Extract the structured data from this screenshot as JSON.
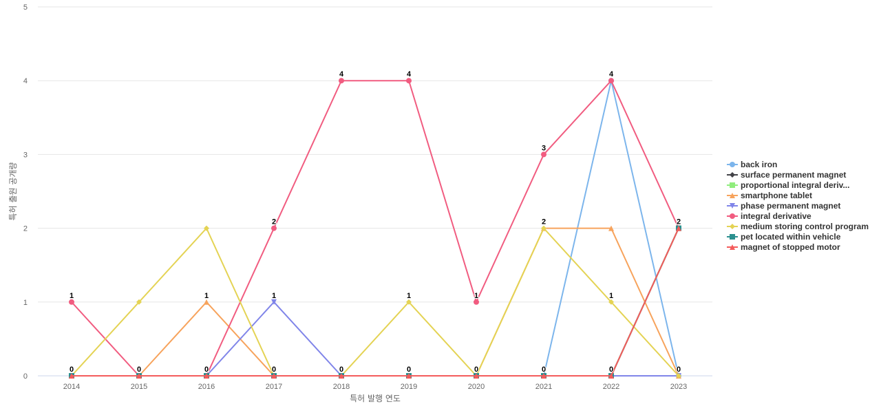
{
  "chart_data": {
    "type": "line",
    "xlabel": "특허 발행 연도",
    "ylabel": "특허 출원 공개량",
    "categories": [
      "2014",
      "2015",
      "2016",
      "2017",
      "2018",
      "2019",
      "2020",
      "2021",
      "2022",
      "2023"
    ],
    "yticks": [
      "0",
      "1",
      "2",
      "3",
      "4",
      "5"
    ],
    "ylim": [
      0,
      5
    ],
    "grid": true,
    "legend_position": "right",
    "series": [
      {
        "name": "back iron",
        "color": "#7cb5ec",
        "marker": "circle",
        "values": [
          0,
          0,
          0,
          0,
          0,
          0,
          0,
          0,
          4,
          0
        ]
      },
      {
        "name": "surface permanent magnet",
        "color": "#434348",
        "marker": "diamond",
        "values": [
          0,
          0,
          0,
          0,
          0,
          0,
          0,
          0,
          0,
          2
        ]
      },
      {
        "name": "proportional integral deriv...",
        "color": "#90ed7d",
        "marker": "square",
        "values": [
          0,
          0,
          0,
          0,
          0,
          0,
          0,
          0,
          0,
          2
        ]
      },
      {
        "name": "smartphone tablet",
        "color": "#f7a35c",
        "marker": "triangle",
        "values": [
          0,
          0,
          1,
          0,
          0,
          0,
          0,
          2,
          2,
          0
        ]
      },
      {
        "name": "phase permanent magnet",
        "color": "#8085e9",
        "marker": "triangle-down",
        "values": [
          0,
          0,
          0,
          1,
          0,
          0,
          0,
          0,
          0,
          0
        ]
      },
      {
        "name": "integral derivative",
        "color": "#f15c80",
        "marker": "circle",
        "values": [
          1,
          0,
          0,
          2,
          4,
          4,
          1,
          3,
          4,
          2
        ]
      },
      {
        "name": "medium storing control program",
        "color": "#e4d354",
        "marker": "diamond",
        "values": [
          0,
          1,
          2,
          0,
          0,
          1,
          0,
          2,
          1,
          0
        ]
      },
      {
        "name": "pet located within vehicle",
        "color": "#2b908f",
        "marker": "square",
        "values": [
          0,
          0,
          0,
          0,
          0,
          0,
          0,
          0,
          0,
          2
        ]
      },
      {
        "name": "magnet of stopped motor",
        "color": "#f45b5b",
        "marker": "triangle",
        "values": [
          0,
          0,
          0,
          0,
          0,
          0,
          0,
          0,
          0,
          2
        ]
      }
    ],
    "data_labels": {
      "values": [
        "1",
        "1",
        "2",
        "2",
        "4",
        "4",
        "1",
        "3",
        "4",
        "2"
      ],
      "zeros": [
        "0",
        "0",
        "0",
        "0",
        "0",
        "0",
        "0",
        "0",
        "0",
        "0"
      ],
      "low": [
        "",
        "",
        "1",
        "1",
        "",
        "1",
        "",
        "2",
        "1",
        ""
      ]
    }
  }
}
